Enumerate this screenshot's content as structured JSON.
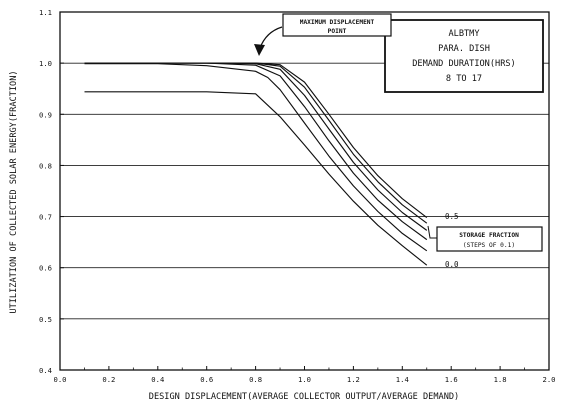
{
  "chart_data": {
    "type": "line",
    "xlabel": "DESIGN DISPLACEMENT(AVERAGE COLLECTOR OUTPUT/AVERAGE DEMAND)",
    "ylabel": "UTILIZATION OF COLLECTED SOLAR ENERGY(FRACTION)",
    "xlim": [
      0.0,
      2.0
    ],
    "ylim": [
      0.4,
      1.1
    ],
    "xticks": [
      "0.0",
      "0.2",
      "0.4",
      "0.6",
      "0.8",
      "1.0",
      "1.2",
      "1.4",
      "1.6",
      "1.8",
      "2.0"
    ],
    "yticks": [
      "0.4",
      "0.5",
      "0.6",
      "0.7",
      "0.8",
      "0.9",
      "1.0",
      "1.1"
    ],
    "grid": "horizontal",
    "legend_box": [
      "ALBTMY",
      "PARA. DISH",
      "DEMAND DURATION(HRS)",
      "8 TO 17"
    ],
    "annotations": {
      "max_point": [
        "MAXIMUM DISPLACEMENT",
        "POINT"
      ],
      "storage": [
        "STORAGE FRACTION",
        "(STEPS OF 0.1)"
      ],
      "top_curve_label": "0.5",
      "bottom_curve_label": "0.0"
    },
    "series": [
      {
        "x": [
          0.1,
          0.4,
          0.6,
          0.8,
          0.9,
          1.0,
          1.1,
          1.2,
          1.3,
          1.4,
          1.5
        ],
        "values": [
          0.944,
          0.944,
          0.944,
          0.94,
          0.895,
          0.84,
          0.783,
          0.73,
          0.683,
          0.643,
          0.605
        ]
      },
      {
        "x": [
          0.1,
          0.4,
          0.6,
          0.8,
          0.85,
          0.9,
          1.0,
          1.1,
          1.2,
          1.3,
          1.4,
          1.5
        ],
        "values": [
          0.999,
          0.999,
          0.995,
          0.984,
          0.972,
          0.948,
          0.883,
          0.818,
          0.76,
          0.71,
          0.667,
          0.633
        ]
      },
      {
        "x": [
          0.1,
          0.4,
          0.6,
          0.8,
          0.9,
          1.0,
          1.1,
          1.2,
          1.3,
          1.4,
          1.5
        ],
        "values": [
          1.0,
          1.0,
          1.0,
          0.996,
          0.975,
          0.915,
          0.848,
          0.785,
          0.732,
          0.69,
          0.655
        ]
      },
      {
        "x": [
          0.1,
          0.4,
          0.6,
          0.8,
          0.9,
          1.0,
          1.1,
          1.2,
          1.3,
          1.4,
          1.5
        ],
        "values": [
          1.0,
          1.0,
          1.0,
          0.999,
          0.988,
          0.937,
          0.871,
          0.806,
          0.752,
          0.708,
          0.673
        ]
      },
      {
        "x": [
          0.1,
          0.4,
          0.6,
          0.8,
          0.9,
          1.0,
          1.1,
          1.2,
          1.3,
          1.4,
          1.5
        ],
        "values": [
          1.0,
          1.0,
          1.0,
          1.0,
          0.994,
          0.953,
          0.888,
          0.822,
          0.768,
          0.723,
          0.687
        ]
      },
      {
        "x": [
          0.1,
          0.4,
          0.6,
          0.8,
          0.9,
          1.0,
          1.1,
          1.2,
          1.3,
          1.4,
          1.5
        ],
        "values": [
          1.0,
          1.0,
          1.0,
          1.0,
          0.997,
          0.963,
          0.9,
          0.835,
          0.78,
          0.735,
          0.698
        ]
      }
    ]
  }
}
